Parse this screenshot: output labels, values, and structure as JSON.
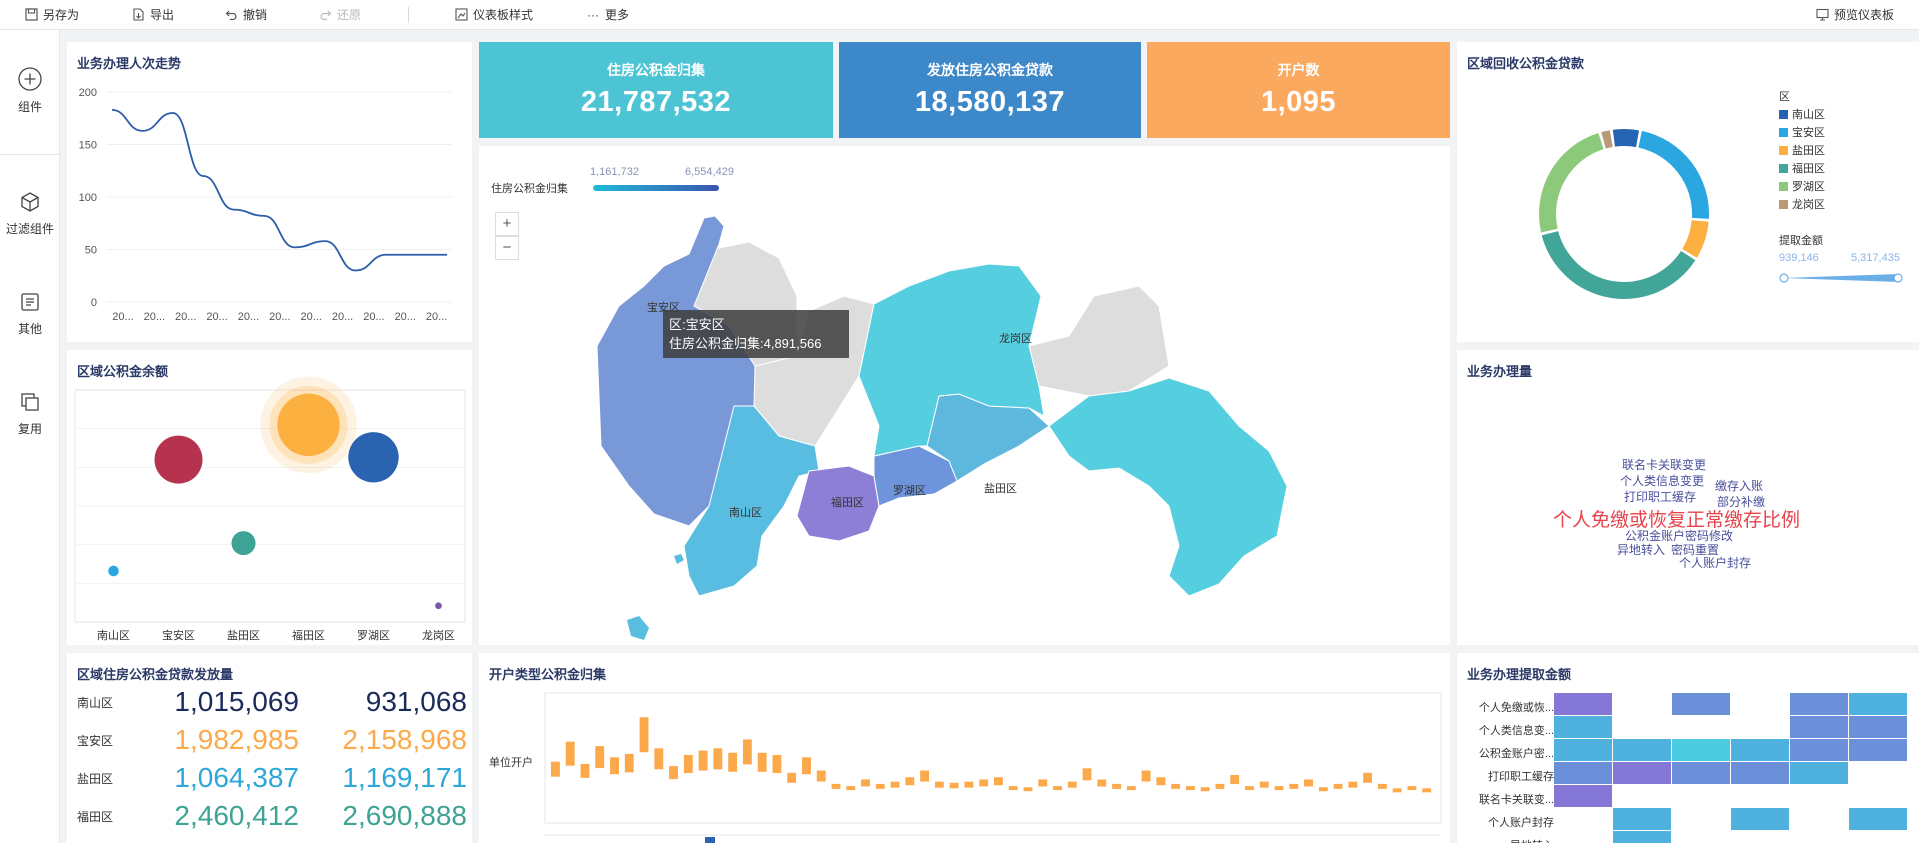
{
  "toolbar": {
    "save_as": "另存为",
    "export": "导出",
    "undo": "撤销",
    "redo": "还原",
    "dashboard_style": "仪表板样式",
    "more": "更多",
    "preview": "预览仪表板"
  },
  "rail": {
    "components": "组件",
    "filters": "过滤组件",
    "others": "其他",
    "reuse": "复用"
  },
  "panels": {
    "trend_title": "业务办理人次走势",
    "balance_title": "区域公积金余额",
    "loan_title": "区域住房公积金贷款发放量",
    "account_type_title": "开户类型公积金归集",
    "recovery_title": "区域回收公积金贷款",
    "volume_title": "业务办理量",
    "withdraw_title": "业务办理提取金额"
  },
  "kpis": [
    {
      "label": "住房公积金归集",
      "value": "21,787,532",
      "color": "#4cc4d4"
    },
    {
      "label": "发放住房公积金贷款",
      "value": "18,580,137",
      "color": "#3d88c9"
    },
    {
      "label": "开户数",
      "value": "1,095",
      "color": "#fba95f"
    }
  ],
  "map": {
    "legend_title": "住房公积金归集",
    "legend_min": "1,161,732",
    "legend_max": "6,554,429",
    "zoom_in": "+",
    "zoom_out": "−",
    "regions": [
      "宝安区",
      "龙岗区",
      "南山区",
      "福田区",
      "罗湖区",
      "盐田区"
    ],
    "tooltip_line1": "区:宝安区",
    "tooltip_line2": "住房公积金归集:4,891,566"
  },
  "trend_chart": {
    "type": "line",
    "y_ticks": [
      "200",
      "150",
      "100",
      "50",
      "0"
    ],
    "x_ticks": [
      "20...",
      "20...",
      "20...",
      "20...",
      "20...",
      "20...",
      "20...",
      "20...",
      "20...",
      "20...",
      "20..."
    ],
    "ylim": [
      0,
      200
    ],
    "values": [
      183,
      163,
      180,
      120,
      88,
      82,
      52,
      58,
      30,
      45,
      45,
      45
    ],
    "color": "#2a5caa"
  },
  "bubble_chart": {
    "type": "scatter",
    "categories": [
      "南山区",
      "宝安区",
      "盐田区",
      "福田区",
      "罗湖区",
      "龙岗区"
    ],
    "points": [
      {
        "cat": 0,
        "y": 0.22,
        "r": 0.22,
        "color": "#2aa7e0"
      },
      {
        "cat": 1,
        "y": 0.7,
        "r": 1.0,
        "color": "#b6334f"
      },
      {
        "cat": 2,
        "y": 0.34,
        "r": 0.5,
        "color": "#3ea394"
      },
      {
        "cat": 3,
        "y": 0.85,
        "r": 1.3,
        "color": "#fbb040"
      },
      {
        "cat": 4,
        "y": 0.71,
        "r": 1.05,
        "color": "#2a63b0"
      },
      {
        "cat": 5,
        "y": 0.07,
        "r": 0.14,
        "color": "#7b57a8"
      }
    ]
  },
  "loan_table": [
    {
      "district": "南山区",
      "v1": "1,015,069",
      "v2": "931,068",
      "color": "#1b2a5a"
    },
    {
      "district": "宝安区",
      "v1": "1,982,985",
      "v2": "2,158,968",
      "color": "#fba94a"
    },
    {
      "district": "盐田区",
      "v1": "1,064,387",
      "v2": "1,169,171",
      "color": "#2ca7d8"
    },
    {
      "district": "福田区",
      "v1": "2,460,412",
      "v2": "2,690,888",
      "color": "#3ea394"
    }
  ],
  "account_chart": {
    "type": "bar",
    "y_label": "单位开户",
    "color": "#fba94a",
    "values": [
      30,
      48,
      28,
      44,
      34,
      37,
      70,
      42,
      26,
      36,
      40,
      42,
      38,
      50,
      38,
      36,
      20,
      34,
      22,
      10,
      8,
      14,
      10,
      12,
      16,
      22,
      12,
      11,
      12,
      14,
      16,
      8,
      7,
      14,
      8,
      12,
      24,
      14,
      10,
      8,
      22,
      16,
      10,
      8,
      7,
      10,
      18,
      8,
      12,
      8,
      10,
      14,
      7,
      10,
      12,
      20,
      10,
      6,
      8,
      6
    ]
  },
  "donut": {
    "legend_title": "区",
    "items": [
      {
        "name": "南山区",
        "color": "#2563b3",
        "value": 5
      },
      {
        "name": "宝安区",
        "color": "#2aa7e0",
        "value": 21
      },
      {
        "name": "盐田区",
        "color": "#fbb040",
        "value": 7
      },
      {
        "name": "福田区",
        "color": "#41a597",
        "value": 34
      },
      {
        "name": "罗湖区",
        "color": "#8cc97a",
        "value": 22
      },
      {
        "name": "龙岗区",
        "color": "#b89a78",
        "value": 2
      }
    ],
    "size_title": "提取金额",
    "size_min": "939,146",
    "size_max": "5,317,435"
  },
  "wordcloud": [
    {
      "text": "联名卡关联变更",
      "size": 12,
      "color": "#4a4f9c"
    },
    {
      "text": "个人类信息变更",
      "size": 12,
      "color": "#4a4f9c"
    },
    {
      "text": "缴存入账",
      "size": 12,
      "color": "#4a4f9c"
    },
    {
      "text": "打印职工缓存",
      "size": 12,
      "color": "#4a4f9c"
    },
    {
      "text": "部分补缴",
      "size": 12,
      "color": "#4a4f9c"
    },
    {
      "text": "个人免缴或恢复正常缴存比例",
      "size": 19,
      "color": "#e8434a"
    },
    {
      "text": "公积金账户密码修改",
      "size": 12,
      "color": "#4a4f9c"
    },
    {
      "text": "异地转入",
      "size": 12,
      "color": "#4a4f9c"
    },
    {
      "text": "密码重置",
      "size": 12,
      "color": "#4a4f9c"
    },
    {
      "text": "个人账户封存",
      "size": 12,
      "color": "#4a4f9c"
    }
  ],
  "heatmap": {
    "rows": [
      "个人免缴或恢...",
      "个人类信息变...",
      "公积金账户密...",
      "打印职工缓存",
      "联名卡关联变...",
      "个人账户封存",
      "异地转入"
    ],
    "cells": [
      [
        1,
        0,
        2,
        0,
        2,
        3
      ],
      [
        3,
        0,
        0,
        0,
        2,
        2
      ],
      [
        3,
        3,
        4,
        3,
        2,
        2
      ],
      [
        2,
        1,
        2,
        2,
        3,
        0
      ],
      [
        1,
        0,
        0,
        0,
        0,
        0
      ],
      [
        0,
        3,
        0,
        3,
        0,
        3
      ],
      [
        0,
        3,
        0,
        0,
        0,
        0
      ]
    ],
    "palette": [
      "#ffffff",
      "#8477d6",
      "#6b8fd8",
      "#4fb2de",
      "#4dcbe0"
    ]
  }
}
